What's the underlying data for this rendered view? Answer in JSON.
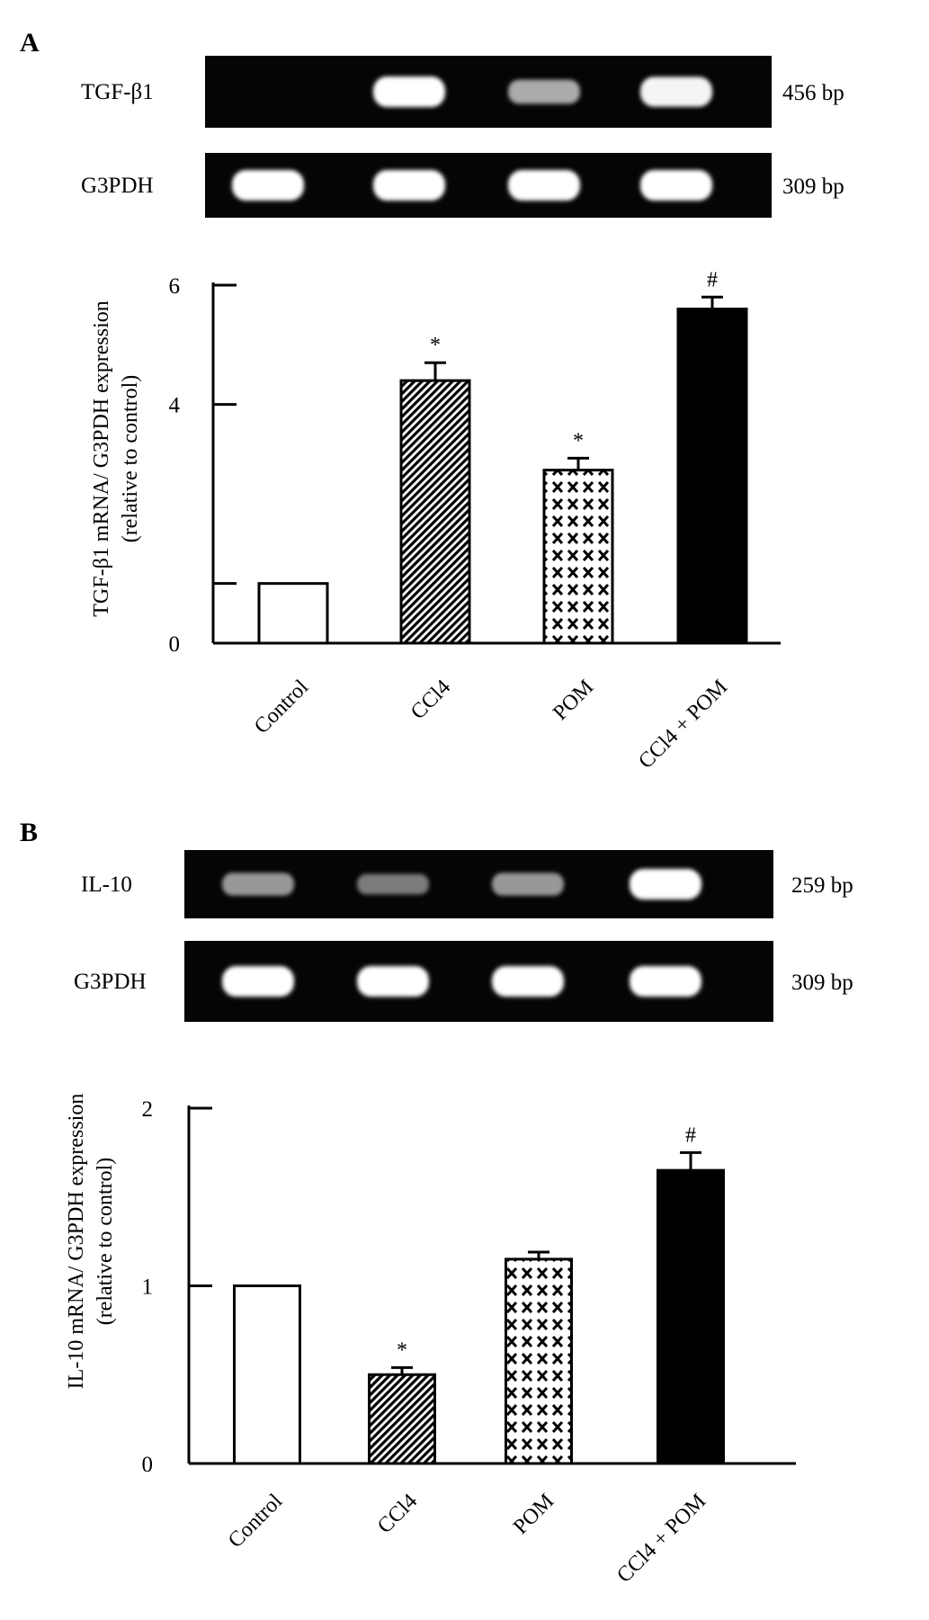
{
  "figure": {
    "panel_a_letter": "A",
    "panel_b_letter": "B"
  },
  "gels": [
    {
      "panel": "A",
      "rows": [
        {
          "name": "TGF-β1",
          "size": "456 bp",
          "band_intensity": [
            0,
            1.0,
            0.55,
            0.95
          ]
        },
        {
          "name": "G3PDH",
          "size": "309 bp",
          "band_intensity": [
            1.0,
            1.0,
            1.0,
            1.0
          ]
        }
      ]
    },
    {
      "panel": "B",
      "rows": [
        {
          "name": "IL-10",
          "size": "259 bp",
          "band_intensity": [
            0.45,
            0.3,
            0.45,
            1.0
          ]
        },
        {
          "name": "G3PDH",
          "size": "309 bp",
          "band_intensity": [
            1.0,
            1.0,
            1.0,
            1.0
          ]
        }
      ]
    }
  ],
  "chart_data": [
    {
      "type": "bar",
      "panel": "A",
      "title": "",
      "xlabel": "",
      "ylabel": [
        "TGF-β1 mRNA/ G3PDH expression",
        "(relative to control)"
      ],
      "categories": [
        "Control",
        "CCl4",
        "POM",
        "CCl4 + POM"
      ],
      "values": [
        1.0,
        4.4,
        2.9,
        5.6
      ],
      "errors": [
        0,
        0.3,
        0.2,
        0.2
      ],
      "significance": [
        "",
        "*",
        "*",
        "#"
      ],
      "fills": [
        "white",
        "hatch",
        "checker",
        "black"
      ],
      "yticks": [
        0,
        4,
        6
      ],
      "ytick_labels": [
        "0",
        "4",
        "6"
      ],
      "extra_tick_at": 1.0,
      "ylim": [
        0,
        6
      ],
      "grid": false
    },
    {
      "type": "bar",
      "panel": "B",
      "title": "",
      "xlabel": "",
      "ylabel": [
        "IL-10 mRNA/ G3PDH expression",
        "(relative to control)"
      ],
      "categories": [
        "Control",
        "CCl4",
        "POM",
        "CCl4 + POM"
      ],
      "values": [
        1.0,
        0.5,
        1.15,
        1.65
      ],
      "errors": [
        0,
        0.04,
        0.04,
        0.1
      ],
      "significance": [
        "",
        "*",
        "",
        "#"
      ],
      "fills": [
        "white",
        "hatch",
        "checker",
        "black"
      ],
      "yticks": [
        0,
        1,
        2
      ],
      "ytick_labels": [
        "0",
        "1",
        "2"
      ],
      "ylim": [
        0,
        2
      ],
      "grid": false
    }
  ]
}
